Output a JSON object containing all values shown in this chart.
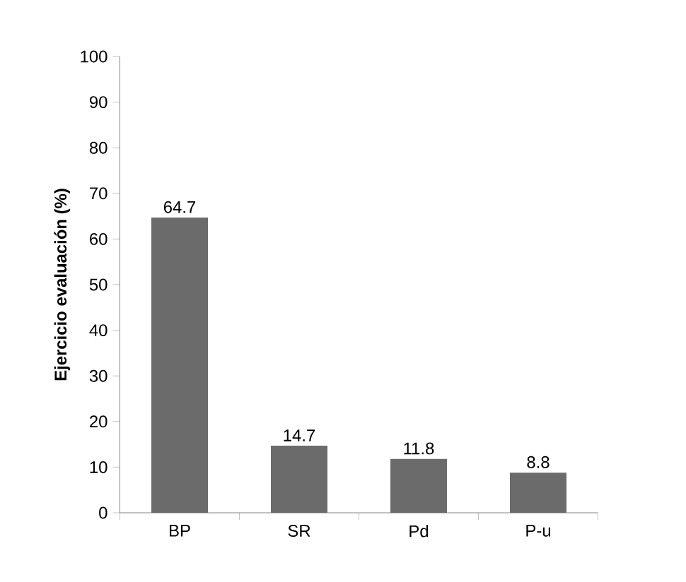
{
  "chart_data": {
    "type": "bar",
    "ylabel": "Ejercicio evaluación (%)",
    "categories": [
      "BP",
      "SR",
      "Pd",
      "P-u"
    ],
    "values": [
      64.7,
      14.7,
      11.8,
      8.8
    ],
    "value_labels": [
      "64.7",
      "14.7",
      "11.8",
      "8.8"
    ],
    "color": "#6b6b6b",
    "ylim": [
      0,
      100
    ],
    "yticks": [
      0,
      10,
      20,
      30,
      40,
      50,
      60,
      70,
      80,
      90,
      100
    ],
    "grid": false
  }
}
